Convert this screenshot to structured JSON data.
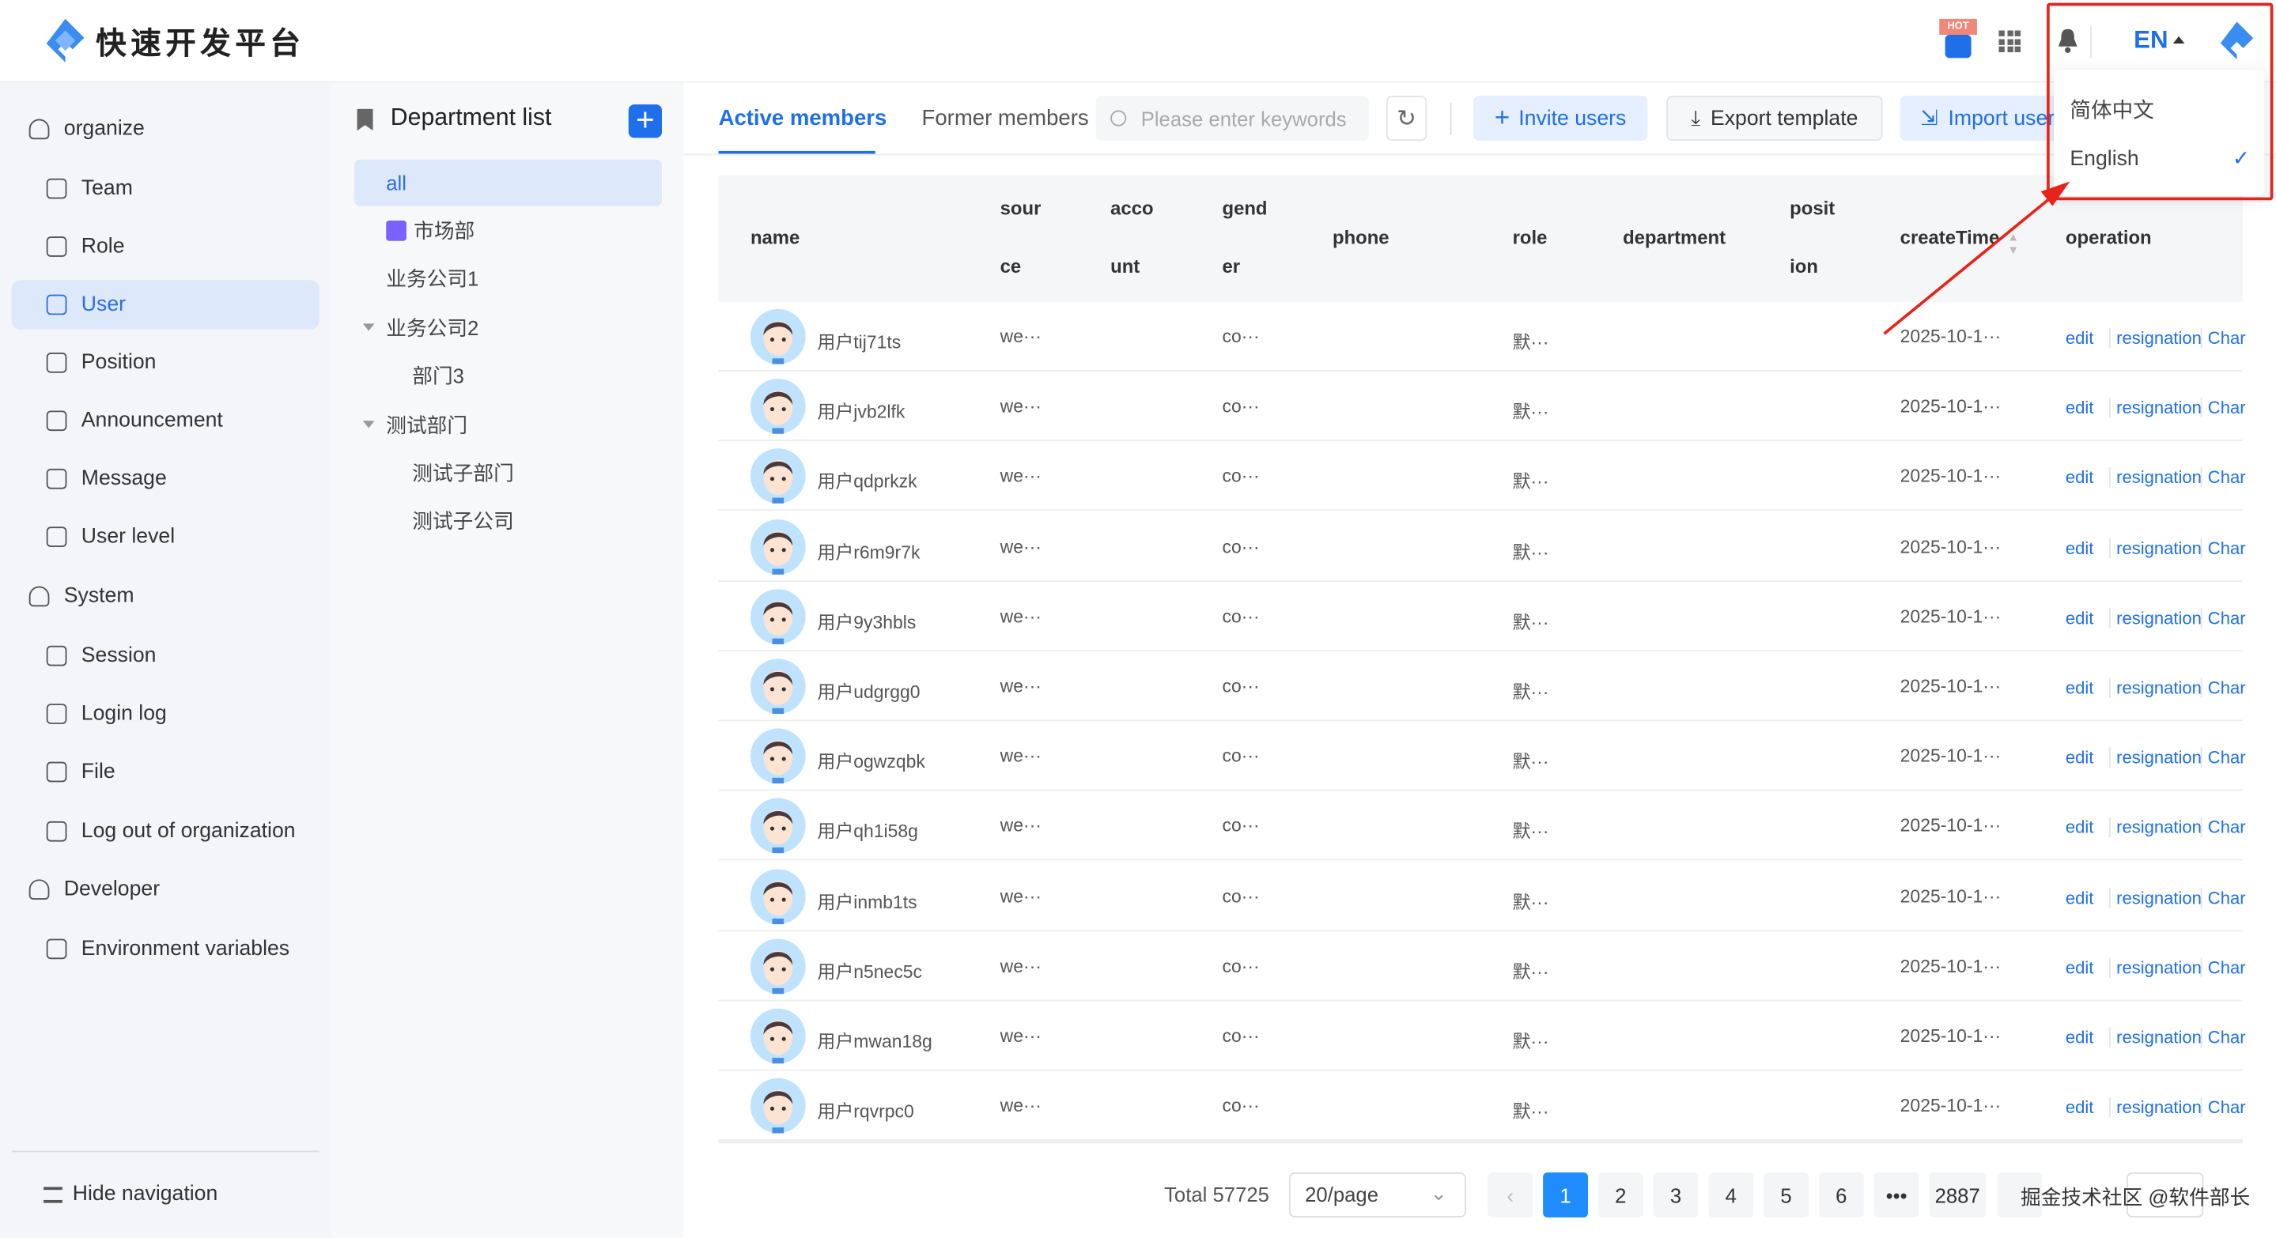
{
  "app": {
    "title": "快速开发平台"
  },
  "topbar": {
    "hot_badge": "HOT",
    "lang": "EN"
  },
  "lang_menu": {
    "items": [
      {
        "label": "简体中文",
        "selected": false
      },
      {
        "label": "English",
        "selected": true
      }
    ]
  },
  "sidebar": {
    "items": [
      {
        "label": "organize",
        "group": true
      },
      {
        "label": "Team"
      },
      {
        "label": "Role"
      },
      {
        "label": "User",
        "selected": true
      },
      {
        "label": "Position"
      },
      {
        "label": "Announcement"
      },
      {
        "label": "Message"
      },
      {
        "label": "User level"
      },
      {
        "label": "System",
        "group": true
      },
      {
        "label": "Session"
      },
      {
        "label": "Login log"
      },
      {
        "label": "File"
      },
      {
        "label": "Log out of organization"
      },
      {
        "label": "Developer",
        "group": true
      },
      {
        "label": "Environment variables"
      }
    ],
    "hide_nav": "Hide navigation"
  },
  "departments": {
    "title": "Department list",
    "tree": [
      {
        "label": "all",
        "level": 0,
        "selected": true
      },
      {
        "label": "市场部",
        "level": 0,
        "icon": true
      },
      {
        "label": "业务公司1",
        "level": 0
      },
      {
        "label": "业务公司2",
        "level": 0,
        "expanded": true
      },
      {
        "label": "部门3",
        "level": 1
      },
      {
        "label": "测试部门",
        "level": 0,
        "expanded": true
      },
      {
        "label": "测试子部门",
        "level": 1
      },
      {
        "label": "测试子公司",
        "level": 1
      }
    ]
  },
  "tabs": [
    {
      "label": "Active members",
      "active": true
    },
    {
      "label": "Former members"
    }
  ],
  "toolbar": {
    "search_placeholder": "Please enter keywords",
    "invite": "Invite users",
    "export": "Export template",
    "import": "Import user"
  },
  "table": {
    "columns": [
      {
        "l1": "name"
      },
      {
        "l1": "sour",
        "l2": "ce"
      },
      {
        "l1": "acco",
        "l2": "unt"
      },
      {
        "l1": "gend",
        "l2": "er"
      },
      {
        "l1": "phone"
      },
      {
        "l1": "role"
      },
      {
        "l1": "department"
      },
      {
        "l1": "posit",
        "l2": "ion"
      },
      {
        "l1": "createTime"
      },
      {
        "l1": "operation"
      }
    ],
    "rows": [
      {
        "name": "用户tij71ts"
      },
      {
        "name": "用户jvb2lfk"
      },
      {
        "name": "用户qdprkzk"
      },
      {
        "name": "用户r6m9r7k"
      },
      {
        "name": "用户9y3hbls"
      },
      {
        "name": "用户udgrgg0"
      },
      {
        "name": "用户ogwzqbk"
      },
      {
        "name": "用户qh1i58g"
      },
      {
        "name": "用户inmb1ts"
      },
      {
        "name": "用户n5nec5c"
      },
      {
        "name": "用户mwan18g"
      },
      {
        "name": "用户rqvrpc0"
      }
    ],
    "row_defaults": {
      "source": "we···",
      "gender": "co···",
      "role": "默···",
      "createTime": "2025-10-1···"
    },
    "actions": {
      "edit": "edit",
      "resign": "resignation",
      "change": "Char"
    }
  },
  "pagination": {
    "total": "Total 57725",
    "page_size": "20/page",
    "pages": [
      "1",
      "2",
      "3",
      "4",
      "5",
      "6",
      "•••",
      "2887"
    ],
    "current": "1"
  },
  "watermark": "掘金技术社区 @软件部长",
  "colors": {
    "accent": "#1f6feb",
    "selected_bg": "#dde8fb",
    "annotation": "#e8231c"
  }
}
